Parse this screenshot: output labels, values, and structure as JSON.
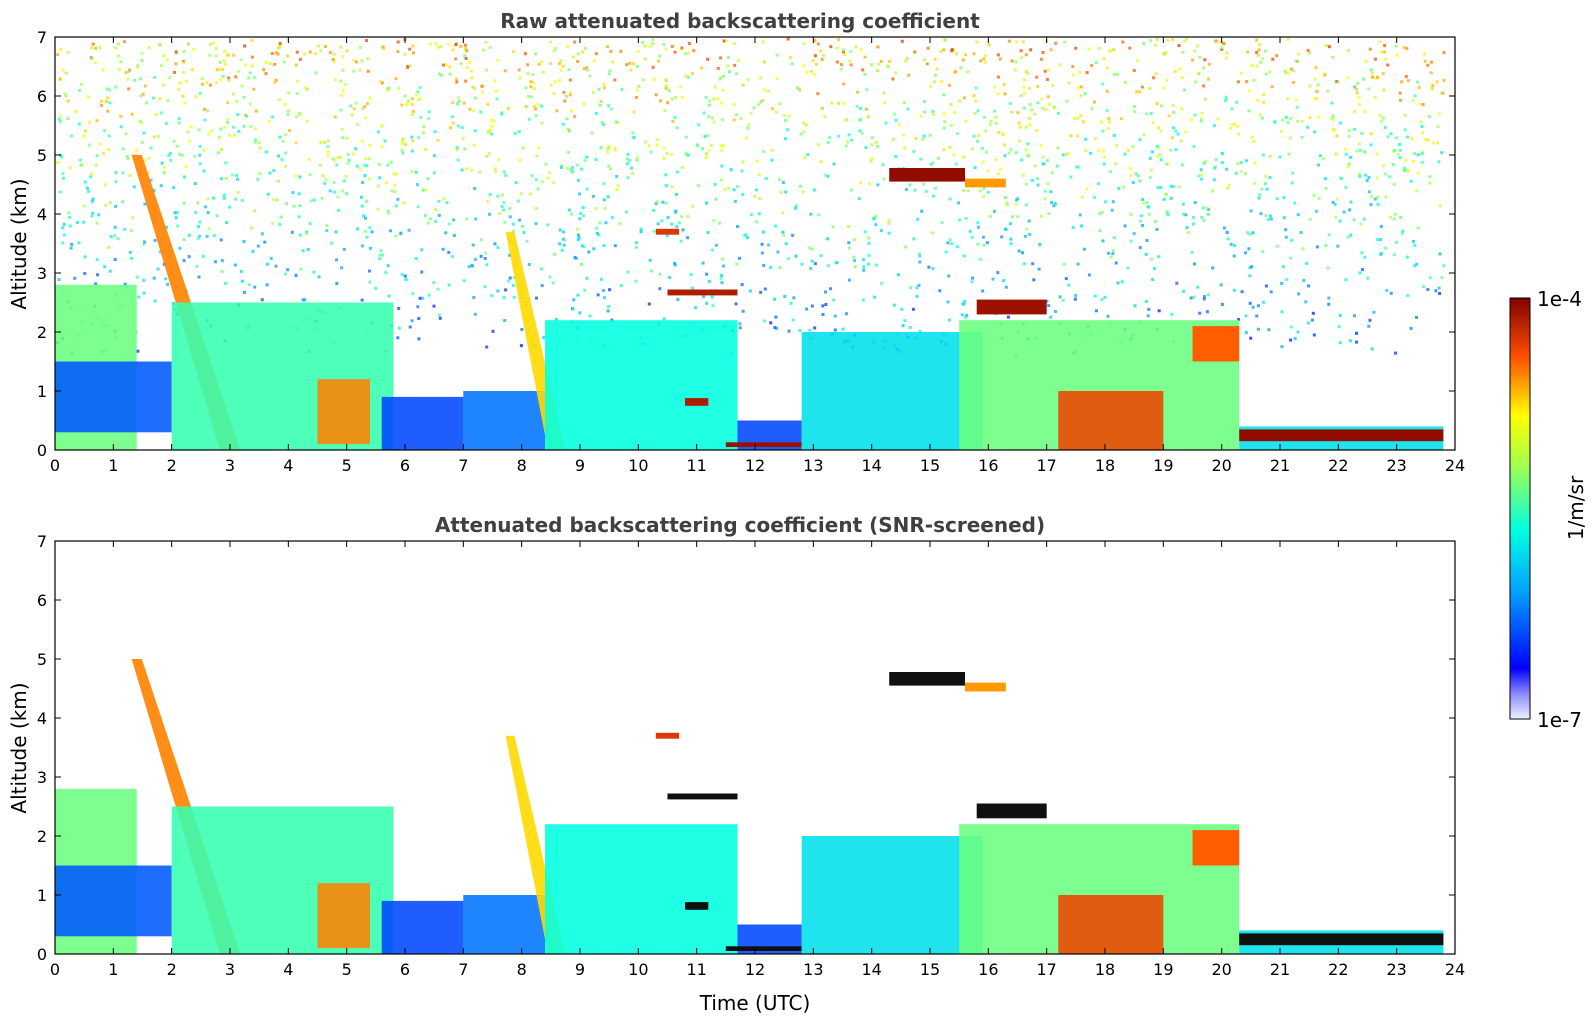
{
  "chart_data": [
    {
      "type": "heatmap",
      "title": "Raw attenuated backscattering coefficient",
      "xlabel": "",
      "ylabel": "Altitude (km)",
      "xlim": [
        0,
        24
      ],
      "ylim": [
        0,
        7
      ],
      "xticks": [
        "0",
        "1",
        "2",
        "3",
        "4",
        "5",
        "6",
        "7",
        "8",
        "9",
        "10",
        "11",
        "12",
        "13",
        "14",
        "15",
        "16",
        "17",
        "18",
        "19",
        "20",
        "21",
        "22",
        "23",
        "24"
      ],
      "yticks": [
        "0",
        "1",
        "2",
        "3",
        "4",
        "5",
        "6",
        "7"
      ],
      "noise_background": true,
      "features": [
        {
          "kind": "layer",
          "t": [
            0.0,
            1.4
          ],
          "z": [
            0.0,
            2.8
          ],
          "level": 0.55
        },
        {
          "kind": "layer",
          "t": [
            0.0,
            2.0
          ],
          "z": [
            0.3,
            1.5
          ],
          "level": 0.22
        },
        {
          "kind": "streak",
          "t0": 1.4,
          "z0": 5.0,
          "t1": 3.0,
          "z1": 0.0,
          "w": 0.35,
          "level": 0.82
        },
        {
          "kind": "layer",
          "t": [
            2.0,
            5.8
          ],
          "z": [
            0.0,
            2.5
          ],
          "level": 0.5
        },
        {
          "kind": "layer",
          "t": [
            4.5,
            5.4
          ],
          "z": [
            0.1,
            1.2
          ],
          "level": 0.82
        },
        {
          "kind": "layer",
          "t": [
            5.6,
            7.0
          ],
          "z": [
            0.0,
            0.9
          ],
          "level": 0.2
        },
        {
          "kind": "layer",
          "t": [
            7.0,
            8.4
          ],
          "z": [
            0.0,
            1.0
          ],
          "level": 0.25
        },
        {
          "kind": "streak",
          "t0": 7.8,
          "z0": 3.7,
          "t1": 8.6,
          "z1": 0.0,
          "w": 0.3,
          "level": 0.75
        },
        {
          "kind": "layer",
          "t": [
            8.4,
            11.7
          ],
          "z": [
            0.0,
            2.2
          ],
          "level": 0.45
        },
        {
          "kind": "layer",
          "t": [
            11.7,
            12.8
          ],
          "z": [
            0.0,
            0.5
          ],
          "level": 0.2
        },
        {
          "kind": "layer",
          "t": [
            12.8,
            15.9
          ],
          "z": [
            0.0,
            2.0
          ],
          "level": 0.4
        },
        {
          "kind": "layer",
          "t": [
            15.5,
            20.3
          ],
          "z": [
            0.0,
            2.2
          ],
          "level": 0.55
        },
        {
          "kind": "layer",
          "t": [
            17.2,
            19.0
          ],
          "z": [
            0.0,
            1.0
          ],
          "level": 0.88
        },
        {
          "kind": "layer",
          "t": [
            20.3,
            23.8
          ],
          "z": [
            0.0,
            0.4
          ],
          "level": 0.4
        },
        {
          "kind": "cloud",
          "t": [
            14.3,
            15.6
          ],
          "z": [
            4.55,
            4.78
          ],
          "level": 0.98
        },
        {
          "kind": "cloud",
          "t": [
            15.6,
            16.3
          ],
          "z": [
            4.45,
            4.6
          ],
          "level": 0.8
        },
        {
          "kind": "cloud",
          "t": [
            10.5,
            11.7
          ],
          "z": [
            2.62,
            2.72
          ],
          "level": 0.95
        },
        {
          "kind": "cloud",
          "t": [
            10.3,
            10.7
          ],
          "z": [
            3.65,
            3.75
          ],
          "level": 0.9
        },
        {
          "kind": "cloud",
          "t": [
            15.8,
            17.0
          ],
          "z": [
            2.3,
            2.55
          ],
          "level": 0.97
        },
        {
          "kind": "cloud",
          "t": [
            10.8,
            11.2
          ],
          "z": [
            0.75,
            0.88
          ],
          "level": 0.95
        },
        {
          "kind": "cloud",
          "t": [
            11.5,
            12.8
          ],
          "z": [
            0.05,
            0.13
          ],
          "level": 0.97
        },
        {
          "kind": "cloud",
          "t": [
            20.3,
            23.8
          ],
          "z": [
            0.15,
            0.35
          ],
          "level": 0.98
        },
        {
          "kind": "cloud",
          "t": [
            19.5,
            20.3
          ],
          "z": [
            1.5,
            2.1
          ],
          "level": 0.85
        }
      ]
    },
    {
      "type": "heatmap",
      "title": "Attenuated backscattering coefficient (SNR-screened)",
      "xlabel": "Time (UTC)",
      "ylabel": "Altitude (km)",
      "xlim": [
        0,
        24
      ],
      "ylim": [
        0,
        7
      ],
      "xticks": [
        "0",
        "1",
        "2",
        "3",
        "4",
        "5",
        "6",
        "7",
        "8",
        "9",
        "10",
        "11",
        "12",
        "13",
        "14",
        "15",
        "16",
        "17",
        "18",
        "19",
        "20",
        "21",
        "22",
        "23",
        "24"
      ],
      "yticks": [
        "0",
        "1",
        "2",
        "3",
        "4",
        "5",
        "6",
        "7"
      ],
      "noise_background": false,
      "same_features_as_panel": 1
    }
  ],
  "colorbar": {
    "label": "1/m/sr",
    "min_label": "1e-7",
    "max_label": "1e-4",
    "colormap": "jet",
    "scale": "log"
  }
}
